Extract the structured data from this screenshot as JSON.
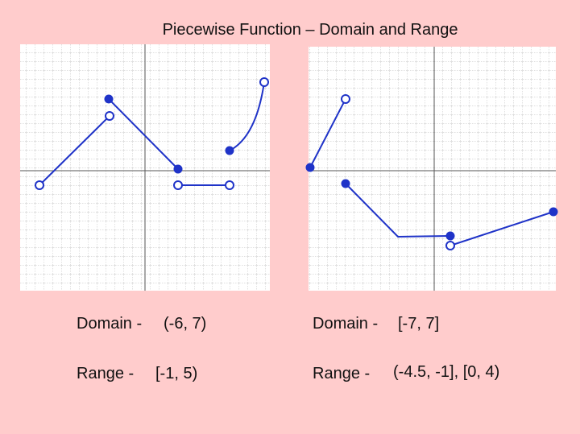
{
  "title": "Piecewise Function – Domain and Range",
  "panels": [
    {
      "domain_label": "Domain -",
      "domain": "(-6, 7)",
      "range_label": "Range -",
      "range": "[-1, 5)"
    },
    {
      "domain_label": "Domain -",
      "domain": "[-7, 7]",
      "range_label": "Range -",
      "range": "(-4.5, -1], [0, 4)"
    }
  ]
}
